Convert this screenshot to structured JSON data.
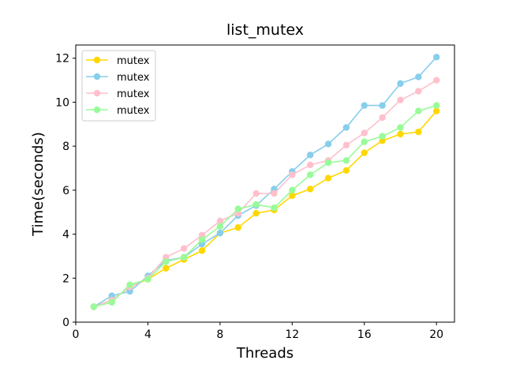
{
  "chart_data": {
    "type": "line",
    "title": "list_mutex",
    "xlabel": "Threads",
    "ylabel": "Time(seconds)",
    "xlim": [
      0,
      21
    ],
    "ylim": [
      0,
      12.6
    ],
    "xticks": [
      0,
      4,
      8,
      12,
      16,
      20
    ],
    "yticks": [
      0,
      2,
      4,
      6,
      8,
      10,
      12
    ],
    "grid": false,
    "legend_position": "top-left",
    "x": [
      1,
      2,
      3,
      4,
      5,
      6,
      7,
      8,
      9,
      10,
      11,
      12,
      13,
      14,
      15,
      16,
      17,
      18,
      19,
      20
    ],
    "series": [
      {
        "name": "mutex",
        "color": "#FFD700",
        "values": [
          0.7,
          1.0,
          1.6,
          1.95,
          2.45,
          2.85,
          3.25,
          4.05,
          4.3,
          4.95,
          5.1,
          5.75,
          6.05,
          6.55,
          6.9,
          7.7,
          8.25,
          8.55,
          8.65,
          9.6
        ]
      },
      {
        "name": "mutex",
        "color": "#87CEEB",
        "values": [
          0.7,
          1.2,
          1.4,
          2.1,
          2.8,
          2.95,
          3.55,
          4.05,
          4.85,
          5.3,
          6.05,
          6.85,
          7.6,
          8.1,
          8.85,
          9.85,
          9.85,
          10.85,
          11.15,
          12.05
        ]
      },
      {
        "name": "mutex",
        "color": "#FFC0CB",
        "values": [
          0.7,
          1.0,
          1.6,
          2.0,
          2.95,
          3.35,
          3.95,
          4.6,
          4.95,
          5.85,
          5.85,
          6.7,
          7.15,
          7.35,
          8.05,
          8.6,
          9.3,
          10.1,
          10.5,
          11.0
        ]
      },
      {
        "name": "mutex",
        "color": "#98FB98",
        "values": [
          0.7,
          0.9,
          1.7,
          1.95,
          2.75,
          2.95,
          3.75,
          4.35,
          5.15,
          5.35,
          5.2,
          6.0,
          6.7,
          7.25,
          7.35,
          8.2,
          8.45,
          8.85,
          9.6,
          9.85
        ]
      }
    ]
  }
}
